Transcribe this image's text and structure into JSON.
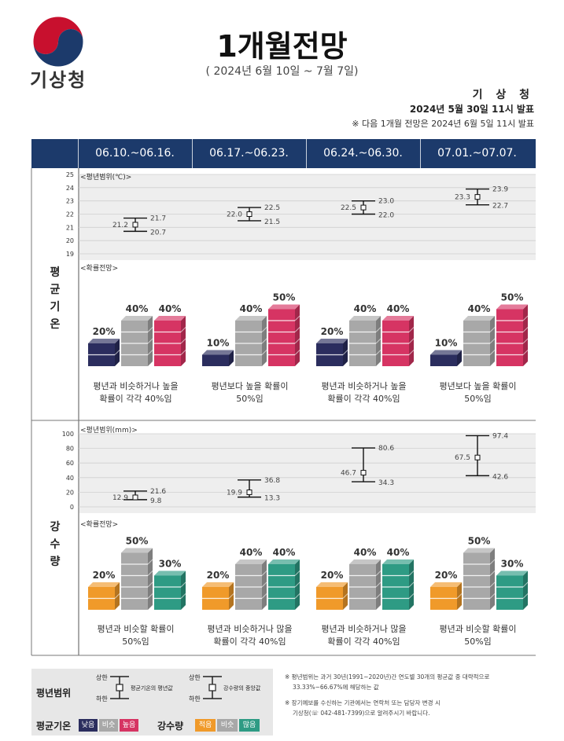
{
  "header": {
    "agency": "기상청",
    "title": "1개월전망",
    "period": "( 2024년 6월 10일 ~ 7월 7일)",
    "issuer": "기 상 청",
    "issued": "2024년 5월 30일 11시 발표",
    "next_note": "※ 다음 1개월 전망은 2024년 6월 5일 11시 발표"
  },
  "weeks": [
    "06.10.~06.16.",
    "06.17.~06.23.",
    "06.24.~06.30.",
    "07.01.~07.07."
  ],
  "temperature": {
    "label": "평균기온",
    "range_title": "<평년범위(℃)>",
    "prob_title": "<확률전망>",
    "axis_ticks": [
      25,
      24,
      23,
      22,
      21,
      20,
      19
    ],
    "ranges": [
      {
        "mid": 21.2,
        "upper": 21.7,
        "lower": 20.7
      },
      {
        "mid": 22.0,
        "upper": 22.5,
        "lower": 21.5
      },
      {
        "mid": 22.5,
        "upper": 23.0,
        "lower": 22.0
      },
      {
        "mid": 23.3,
        "upper": 23.9,
        "lower": 22.7
      }
    ],
    "probabilities": [
      {
        "below": "20%",
        "normal": "40%",
        "above": "40%",
        "b": 20,
        "n": 40,
        "a": 40
      },
      {
        "below": "10%",
        "normal": "40%",
        "above": "50%",
        "b": 10,
        "n": 40,
        "a": 50
      },
      {
        "below": "20%",
        "normal": "40%",
        "above": "40%",
        "b": 20,
        "n": 40,
        "a": 40
      },
      {
        "below": "10%",
        "normal": "40%",
        "above": "50%",
        "b": 10,
        "n": 40,
        "a": 50
      }
    ],
    "captions": [
      [
        "평년과 비슷하거나 높을",
        "확률이 각각 40%임"
      ],
      [
        "평년보다 높을 확률이",
        "50%임"
      ],
      [
        "평년과 비슷하거나 높을",
        "확률이 각각 40%임"
      ],
      [
        "평년보다 높을 확률이",
        "50%임"
      ]
    ]
  },
  "precipitation": {
    "label": "강수량",
    "range_title": "<평년범위(mm)>",
    "prob_title": "<확률전망>",
    "axis_ticks": [
      100,
      80,
      60,
      40,
      20,
      0
    ],
    "ranges": [
      {
        "mid": 12.9,
        "upper": 21.6,
        "lower": 9.8
      },
      {
        "mid": 19.9,
        "upper": 36.8,
        "lower": 13.3
      },
      {
        "mid": 46.7,
        "upper": 80.6,
        "lower": 34.3
      },
      {
        "mid": 67.5,
        "upper": 97.4,
        "lower": 42.6
      }
    ],
    "probabilities": [
      {
        "below": "20%",
        "normal": "50%",
        "above": "30%",
        "b": 20,
        "n": 50,
        "a": 30
      },
      {
        "below": "20%",
        "normal": "40%",
        "above": "40%",
        "b": 20,
        "n": 40,
        "a": 40
      },
      {
        "below": "20%",
        "normal": "40%",
        "above": "40%",
        "b": 20,
        "n": 40,
        "a": 40
      },
      {
        "below": "20%",
        "normal": "50%",
        "above": "30%",
        "b": 20,
        "n": 50,
        "a": 30
      }
    ],
    "captions": [
      [
        "평년과 비슷할 확률이",
        "50%임"
      ],
      [
        "평년과 비슷하거나 많을",
        "확률이 각각 40%임"
      ],
      [
        "평년과 비슷하거나 많을",
        "확률이 각각 40%임"
      ],
      [
        "평년과 비슷할 확률이",
        "50%임"
      ]
    ]
  },
  "legend": {
    "range_label": "평년범위",
    "upper": "상한",
    "lower": "하한",
    "temp_mid": "평균기온의 평년값",
    "precip_mid": "강수량의 중앙값",
    "temp_label": "평균기온",
    "temp_chips": [
      "낮음",
      "비슷",
      "높음"
    ],
    "precip_label": "강수량",
    "precip_chips": [
      "적음",
      "비슷",
      "많음"
    ]
  },
  "footnotes": {
    "n1_line1": "※  평년범위는  과거 30년(1991~2020년)간  연도별 30개의 평균값 중  대략적으로",
    "n1_line2": "33.33%~66.67%에 해당하는 값",
    "n2_line1": "※  장기예보를 수신하는 기관에서는 연락처 또는 담당자 변경 시",
    "n2_line2": "기상청(☏ 042-481-7399)으로 알려주시기 바랍니다."
  },
  "colors": {
    "header_bar": "#1c3a6b",
    "temp_below": "#2b2d5e",
    "temp_normal": "#a8a8a8",
    "temp_above": "#d63463",
    "precip_below": "#f09a2a",
    "precip_normal": "#a8a8a8",
    "precip_above": "#2e9b84"
  }
}
